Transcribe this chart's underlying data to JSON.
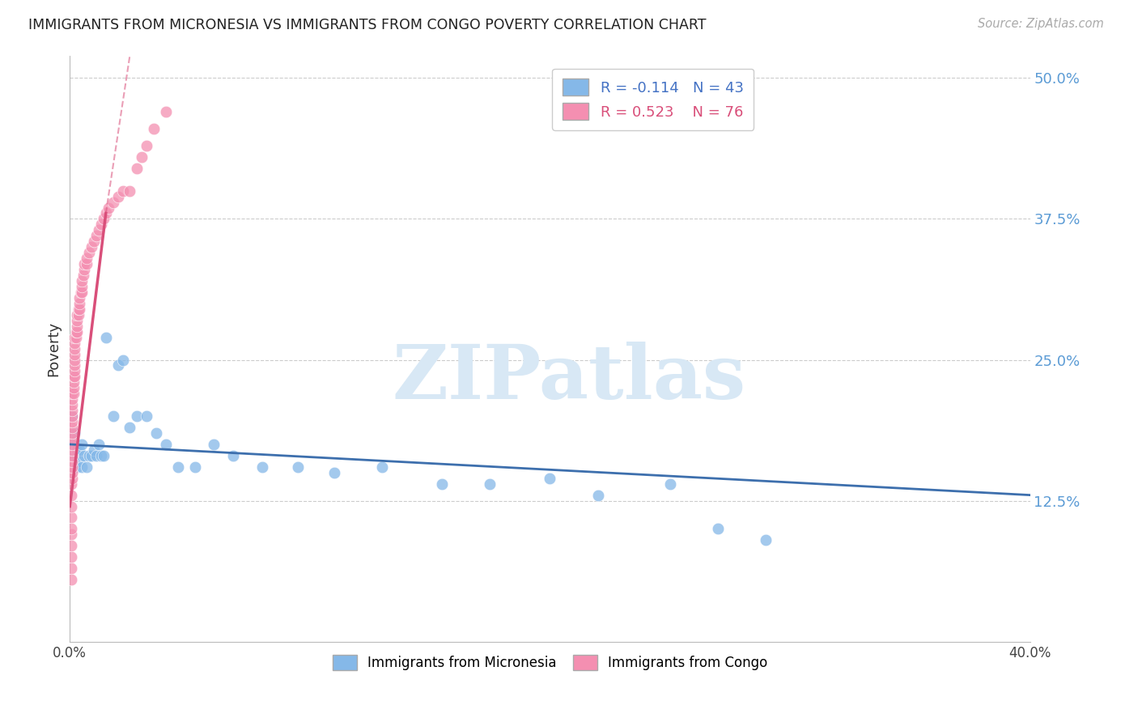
{
  "title": "IMMIGRANTS FROM MICRONESIA VS IMMIGRANTS FROM CONGO POVERTY CORRELATION CHART",
  "source": "Source: ZipAtlas.com",
  "ylabel": "Poverty",
  "right_yticks": [
    0.125,
    0.25,
    0.375,
    0.5
  ],
  "right_yticklabels": [
    "12.5%",
    "25.0%",
    "37.5%",
    "50.0%"
  ],
  "xlim": [
    0.0,
    0.4
  ],
  "ylim": [
    0.0,
    0.52
  ],
  "micronesia_R": -0.114,
  "micronesia_N": 43,
  "congo_R": 0.523,
  "congo_N": 76,
  "micronesia_color": "#85b8e8",
  "congo_color": "#f48fb1",
  "trend_micronesia_color": "#3d6fad",
  "trend_congo_color": "#d94f7a",
  "watermark_color": "#d8e8f5",
  "micronesia_x": [
    0.001,
    0.001,
    0.002,
    0.002,
    0.003,
    0.003,
    0.004,
    0.004,
    0.005,
    0.005,
    0.006,
    0.007,
    0.008,
    0.009,
    0.01,
    0.011,
    0.012,
    0.013,
    0.014,
    0.015,
    0.018,
    0.02,
    0.022,
    0.025,
    0.028,
    0.032,
    0.036,
    0.04,
    0.045,
    0.052,
    0.06,
    0.068,
    0.08,
    0.095,
    0.11,
    0.13,
    0.155,
    0.175,
    0.2,
    0.22,
    0.25,
    0.27,
    0.29
  ],
  "micronesia_y": [
    0.175,
    0.2,
    0.165,
    0.185,
    0.17,
    0.155,
    0.17,
    0.16,
    0.175,
    0.155,
    0.165,
    0.155,
    0.165,
    0.165,
    0.17,
    0.165,
    0.175,
    0.165,
    0.165,
    0.27,
    0.2,
    0.245,
    0.25,
    0.19,
    0.2,
    0.2,
    0.185,
    0.175,
    0.155,
    0.155,
    0.175,
    0.165,
    0.155,
    0.155,
    0.15,
    0.155,
    0.14,
    0.14,
    0.145,
    0.13,
    0.14,
    0.1,
    0.09
  ],
  "congo_x": [
    0.0005,
    0.0005,
    0.0005,
    0.0005,
    0.0005,
    0.0005,
    0.0005,
    0.0005,
    0.0005,
    0.0005,
    0.001,
    0.001,
    0.001,
    0.001,
    0.001,
    0.001,
    0.001,
    0.001,
    0.001,
    0.001,
    0.001,
    0.001,
    0.001,
    0.001,
    0.001,
    0.001,
    0.0015,
    0.0015,
    0.0015,
    0.0015,
    0.002,
    0.002,
    0.002,
    0.002,
    0.002,
    0.002,
    0.002,
    0.002,
    0.0025,
    0.0025,
    0.003,
    0.003,
    0.003,
    0.003,
    0.0035,
    0.0035,
    0.004,
    0.004,
    0.004,
    0.0045,
    0.005,
    0.005,
    0.005,
    0.0055,
    0.006,
    0.006,
    0.007,
    0.007,
    0.008,
    0.009,
    0.01,
    0.011,
    0.012,
    0.013,
    0.014,
    0.015,
    0.016,
    0.018,
    0.02,
    0.022,
    0.025,
    0.028,
    0.03,
    0.032,
    0.035,
    0.04
  ],
  "congo_y": [
    0.055,
    0.065,
    0.075,
    0.085,
    0.095,
    0.1,
    0.11,
    0.12,
    0.13,
    0.14,
    0.145,
    0.15,
    0.155,
    0.16,
    0.165,
    0.17,
    0.175,
    0.18,
    0.185,
    0.19,
    0.195,
    0.2,
    0.205,
    0.21,
    0.215,
    0.22,
    0.22,
    0.225,
    0.23,
    0.235,
    0.235,
    0.24,
    0.245,
    0.25,
    0.255,
    0.26,
    0.265,
    0.27,
    0.27,
    0.275,
    0.275,
    0.28,
    0.285,
    0.29,
    0.29,
    0.295,
    0.295,
    0.3,
    0.305,
    0.31,
    0.31,
    0.315,
    0.32,
    0.325,
    0.33,
    0.335,
    0.335,
    0.34,
    0.345,
    0.35,
    0.355,
    0.36,
    0.365,
    0.37,
    0.375,
    0.38,
    0.385,
    0.39,
    0.395,
    0.4,
    0.4,
    0.42,
    0.43,
    0.44,
    0.455,
    0.47
  ],
  "trend_mic_x0": 0.0,
  "trend_mic_x1": 0.4,
  "trend_mic_y0": 0.175,
  "trend_mic_y1": 0.13,
  "trend_con_solid_x0": 0.0,
  "trend_con_solid_x1": 0.015,
  "trend_con_solid_y0": 0.12,
  "trend_con_solid_y1": 0.38,
  "trend_con_dash_x0": 0.015,
  "trend_con_dash_x1": 0.025,
  "trend_con_dash_y0": 0.38,
  "trend_con_dash_y1": 0.52
}
